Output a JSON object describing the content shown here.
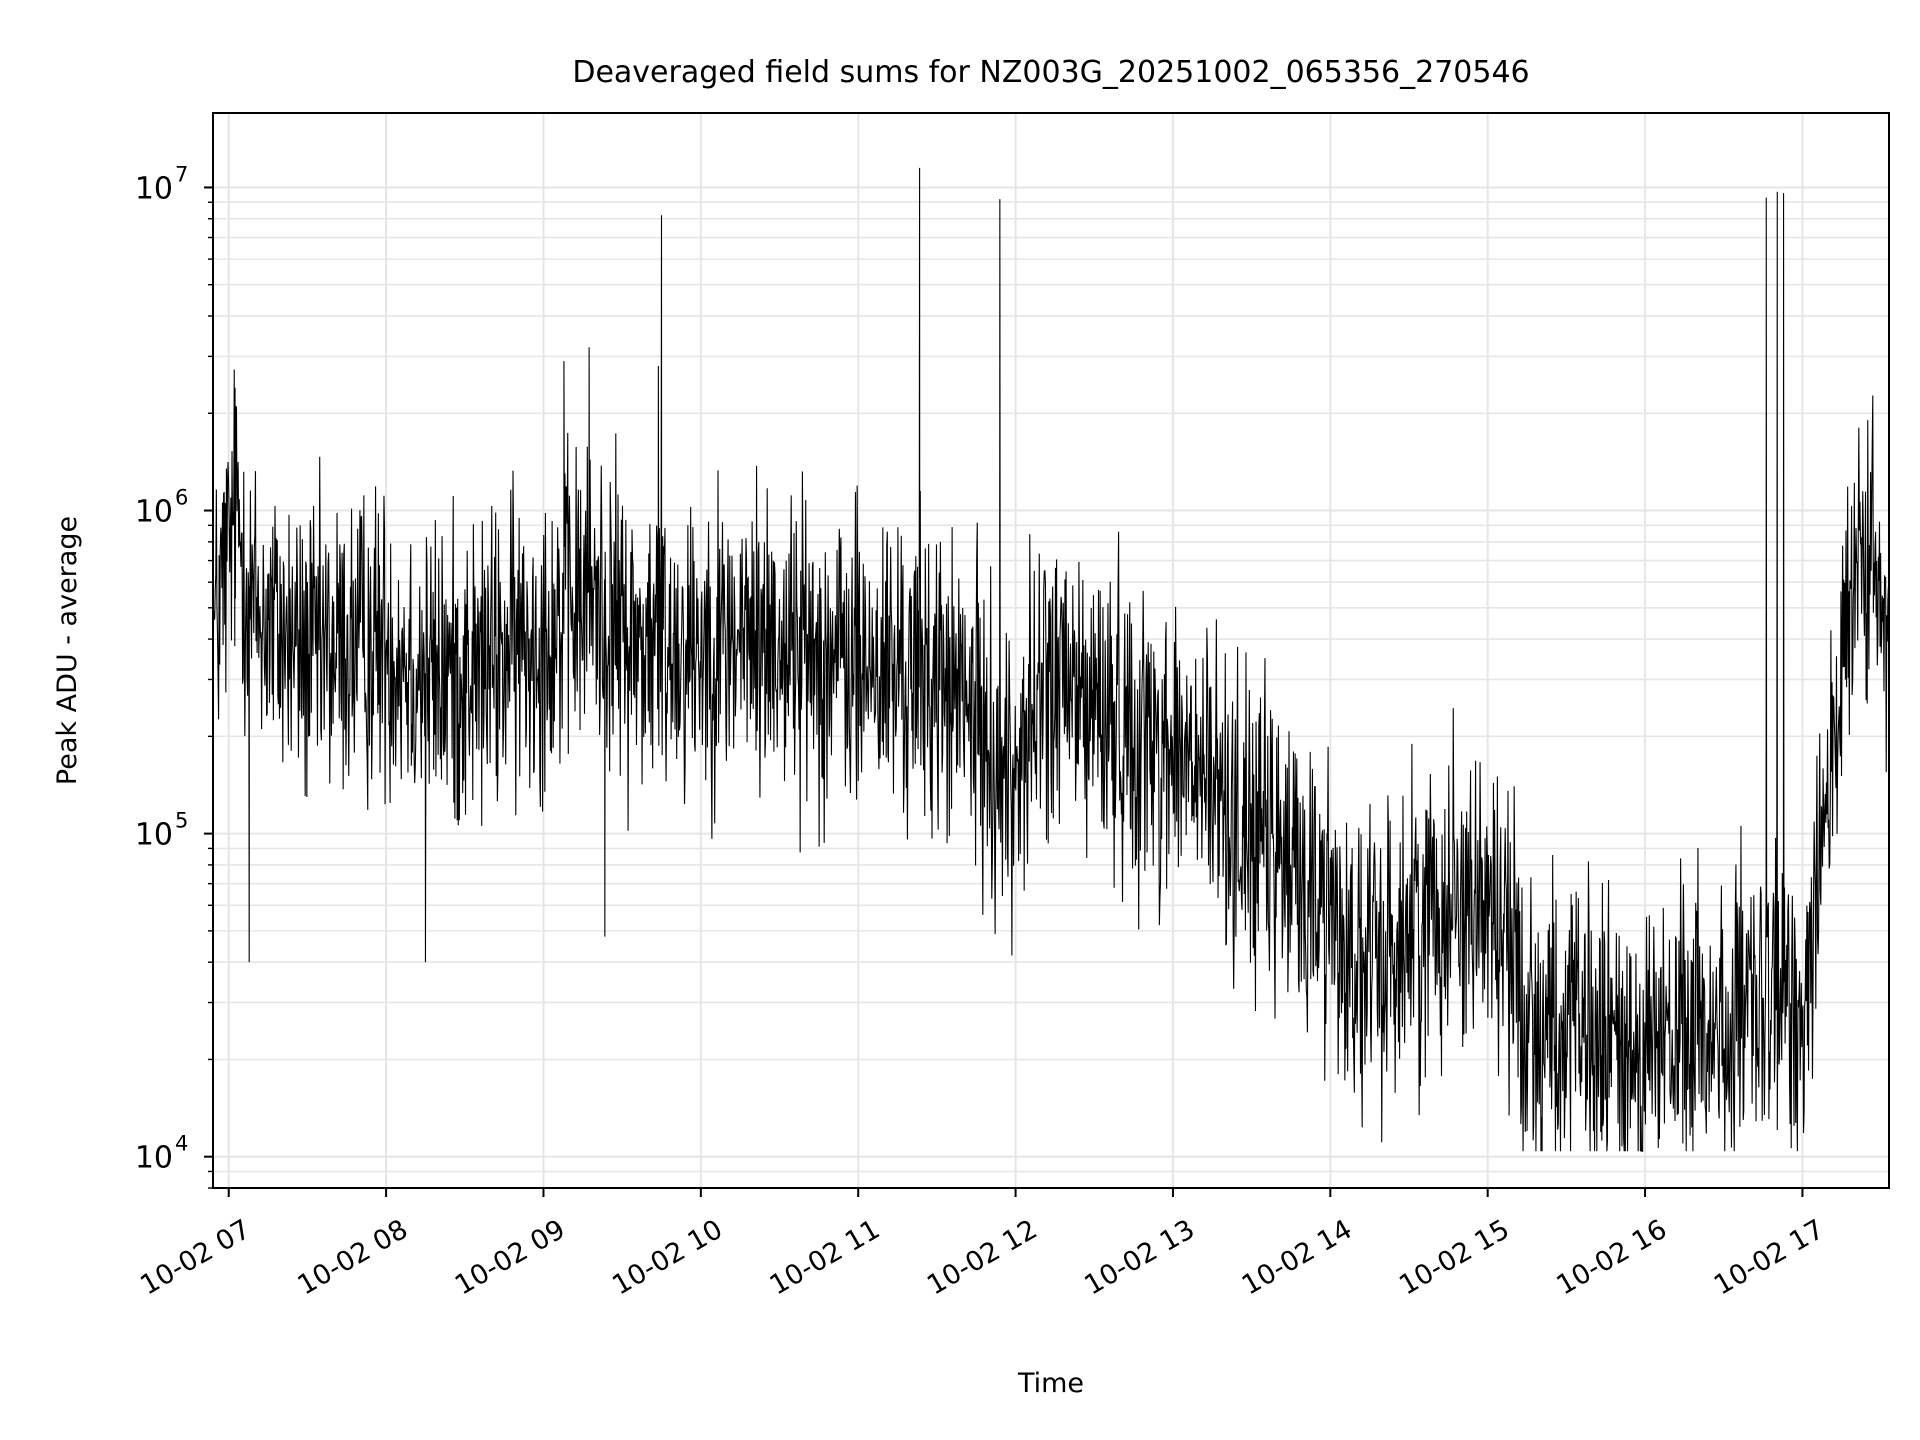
{
  "chart_data": {
    "type": "line",
    "title": "Deaveraged field sums for NZ003G_20251002_065356_270546",
    "xlabel": "Time",
    "ylabel": "Peak ADU - average",
    "yscale": "log",
    "ylim": [
      8000,
      17000000
    ],
    "xlim_hours": [
      6.9,
      17.55
    ],
    "x_ticks": [
      {
        "hour": 7,
        "label": "10-02 07"
      },
      {
        "hour": 8,
        "label": "10-02 08"
      },
      {
        "hour": 9,
        "label": "10-02 09"
      },
      {
        "hour": 10,
        "label": "10-02 10"
      },
      {
        "hour": 11,
        "label": "10-02 11"
      },
      {
        "hour": 12,
        "label": "10-02 12"
      },
      {
        "hour": 13,
        "label": "10-02 13"
      },
      {
        "hour": 14,
        "label": "10-02 14"
      },
      {
        "hour": 15,
        "label": "10-02 15"
      },
      {
        "hour": 16,
        "label": "10-02 16"
      },
      {
        "hour": 17,
        "label": "10-02 17"
      }
    ],
    "y_ticks": [
      {
        "value": 10000,
        "base": "10",
        "exp": "4"
      },
      {
        "value": 100000,
        "base": "10",
        "exp": "5"
      },
      {
        "value": 1000000,
        "base": "10",
        "exp": "6"
      },
      {
        "value": 10000000,
        "base": "10",
        "exp": "7"
      }
    ],
    "grid": true,
    "series": [
      {
        "name": "deaveraged field sums",
        "color": "#000000",
        "baseline": [
          [
            6.9,
            400000
          ],
          [
            7.05,
            1000000
          ],
          [
            7.15,
            500000
          ],
          [
            7.5,
            350000
          ],
          [
            8.0,
            400000
          ],
          [
            8.3,
            300000
          ],
          [
            8.6,
            320000
          ],
          [
            9.0,
            420000
          ],
          [
            9.3,
            550000
          ],
          [
            9.6,
            380000
          ],
          [
            10.0,
            400000
          ],
          [
            10.5,
            400000
          ],
          [
            11.0,
            330000
          ],
          [
            11.5,
            300000
          ],
          [
            11.75,
            230000
          ],
          [
            11.95,
            140000
          ],
          [
            12.2,
            300000
          ],
          [
            12.6,
            230000
          ],
          [
            13.0,
            180000
          ],
          [
            13.3,
            130000
          ],
          [
            13.6,
            90000
          ],
          [
            14.0,
            60000
          ],
          [
            14.2,
            35000
          ],
          [
            14.5,
            50000
          ],
          [
            14.8,
            70000
          ],
          [
            15.1,
            55000
          ],
          [
            15.25,
            28000
          ],
          [
            15.5,
            23000
          ],
          [
            16.0,
            21000
          ],
          [
            16.3,
            24000
          ],
          [
            16.6,
            26000
          ],
          [
            16.9,
            30000
          ],
          [
            17.0,
            28000
          ],
          [
            17.1,
            90000
          ],
          [
            17.25,
            300000
          ],
          [
            17.4,
            800000
          ],
          [
            17.55,
            350000
          ]
        ],
        "spread_decades": 0.55,
        "spikes": [
          {
            "hour": 7.04,
            "value": 2400000
          },
          {
            "hour": 7.13,
            "value": 40000
          },
          {
            "hour": 8.25,
            "value": 40000
          },
          {
            "hour": 9.13,
            "value": 2900000
          },
          {
            "hour": 9.29,
            "value": 3200000
          },
          {
            "hour": 9.39,
            "value": 48000
          },
          {
            "hour": 9.73,
            "value": 2800000
          },
          {
            "hour": 9.75,
            "value": 8200000
          },
          {
            "hour": 11.39,
            "value": 11500000
          },
          {
            "hour": 11.9,
            "value": 9200000
          },
          {
            "hour": 15.25,
            "value": 12000
          },
          {
            "hour": 16.24,
            "value": 11000
          },
          {
            "hour": 16.77,
            "value": 9300000
          },
          {
            "hour": 16.84,
            "value": 9700000
          },
          {
            "hour": 16.88,
            "value": 9600000
          }
        ]
      }
    ]
  }
}
